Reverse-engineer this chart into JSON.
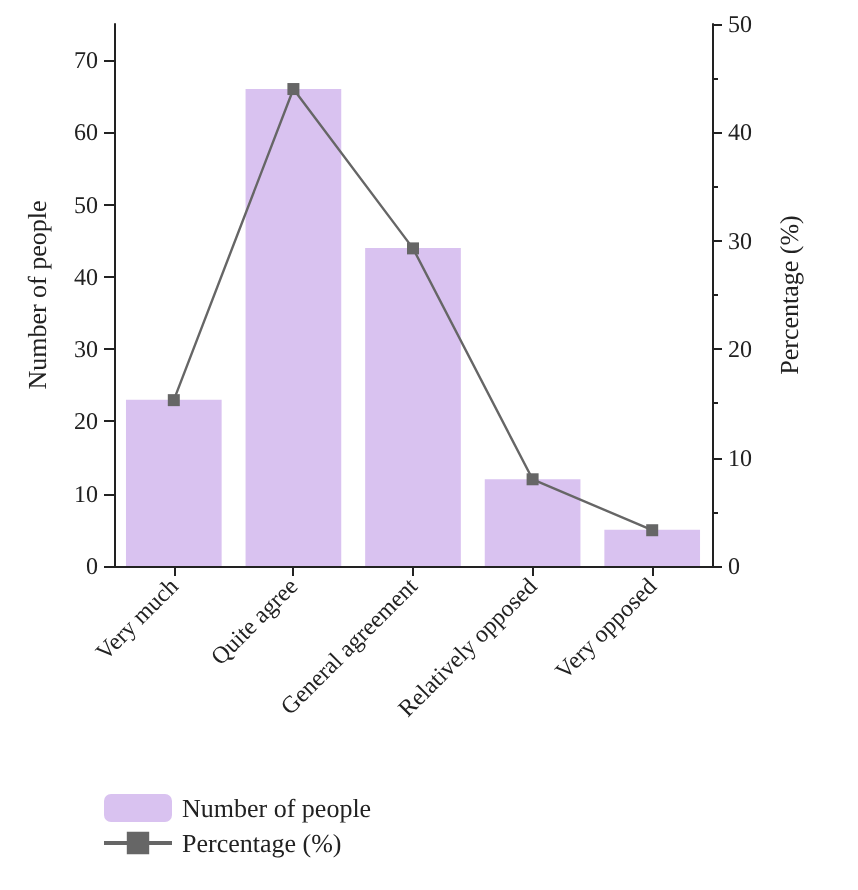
{
  "chart_data": {
    "type": "bar",
    "ylabel": "Number of people",
    "y2label": "Percentage (%)",
    "categories": [
      "Very much",
      "Quite agree",
      "General agreement",
      "Relatively opposed",
      "Very opposed"
    ],
    "series": [
      {
        "name": "Number of people",
        "color": "#d9c2f0",
        "values": [
          23,
          66,
          44,
          12,
          5
        ]
      },
      {
        "name": "Percentage (%)",
        "type": "line",
        "axis": "y2",
        "color": "#666666",
        "values": [
          15.3,
          44,
          29.3,
          8,
          3.3
        ],
        "marker": "square",
        "line_style": "solid"
      }
    ],
    "ylim": [
      0,
      75
    ],
    "yticks": [
      0,
      10,
      20,
      30,
      40,
      50,
      60,
      70
    ],
    "y2lim": [
      0,
      50
    ],
    "y2ticks": [
      0,
      10,
      20,
      30,
      40,
      50
    ],
    "grid": false,
    "legend": "bottom left"
  }
}
